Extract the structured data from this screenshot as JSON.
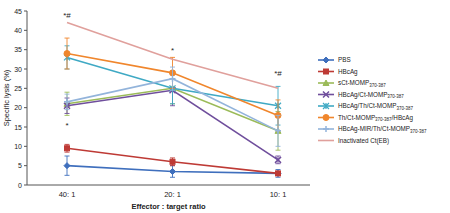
{
  "chart_data": {
    "type": "line",
    "x_label": "Effector : target ratio",
    "y_label": "Specific lysis (%)",
    "categories": [
      "40: 1",
      "20: 1",
      "10: 1"
    ],
    "ylim": [
      0,
      45
    ],
    "yticks": [
      0,
      5,
      10,
      15,
      20,
      25,
      30,
      35,
      40,
      45
    ],
    "grid": false,
    "legend": "right",
    "series": [
      {
        "name": "PBS",
        "color": "#3f6fbd",
        "marker": "diamond",
        "values": [
          5,
          3.5,
          3
        ],
        "errors": [
          2.5,
          1.5,
          1
        ]
      },
      {
        "name": "HBcAg",
        "color": "#be3a35",
        "marker": "square",
        "values": [
          9.5,
          6,
          3
        ],
        "errors": [
          1,
          1,
          0.5
        ]
      },
      {
        "name": "sCt-MOMP370-387",
        "color": "#9bbb59",
        "marker": "triangle",
        "values": [
          21,
          25,
          14
        ],
        "errors": [
          3,
          4,
          5
        ]
      },
      {
        "name": "HBcAg/Ct-MOMP370-387",
        "color": "#6f4e9c",
        "marker": "x",
        "values": [
          20.5,
          24.5,
          6.5
        ],
        "errors": [
          2,
          4,
          1
        ]
      },
      {
        "name": "HBcAg/Th/Ct-MOMP370-387",
        "color": "#3fa9c4",
        "marker": "star",
        "values": [
          33,
          25,
          20.5
        ],
        "errors": [
          3,
          4,
          5
        ]
      },
      {
        "name": "Th/Ct-MOMP370-387/HBcAg",
        "color": "#f0862c",
        "marker": "circle",
        "values": [
          34,
          29,
          18
        ],
        "errors": [
          4,
          4,
          4
        ]
      },
      {
        "name": "HBcAg-MIR/Th/Ct-MOMP370-387",
        "color": "#93b4db",
        "marker": "plus",
        "values": [
          21.5,
          27.5,
          14
        ],
        "errors": [
          2,
          3,
          4
        ]
      },
      {
        "name": "Inactivated Ct(EB)",
        "color": "#e0a09c",
        "marker": "none",
        "values": [
          42,
          32.5,
          25
        ]
      }
    ],
    "annotations": [
      {
        "text": "*#",
        "x": "40: 1",
        "y": 44
      },
      {
        "text": "*",
        "x": "40: 1",
        "y": 15.5
      },
      {
        "text": "*",
        "x": "20: 1",
        "y": 35
      },
      {
        "text": "*#",
        "x": "10: 1",
        "y": 29
      }
    ]
  }
}
